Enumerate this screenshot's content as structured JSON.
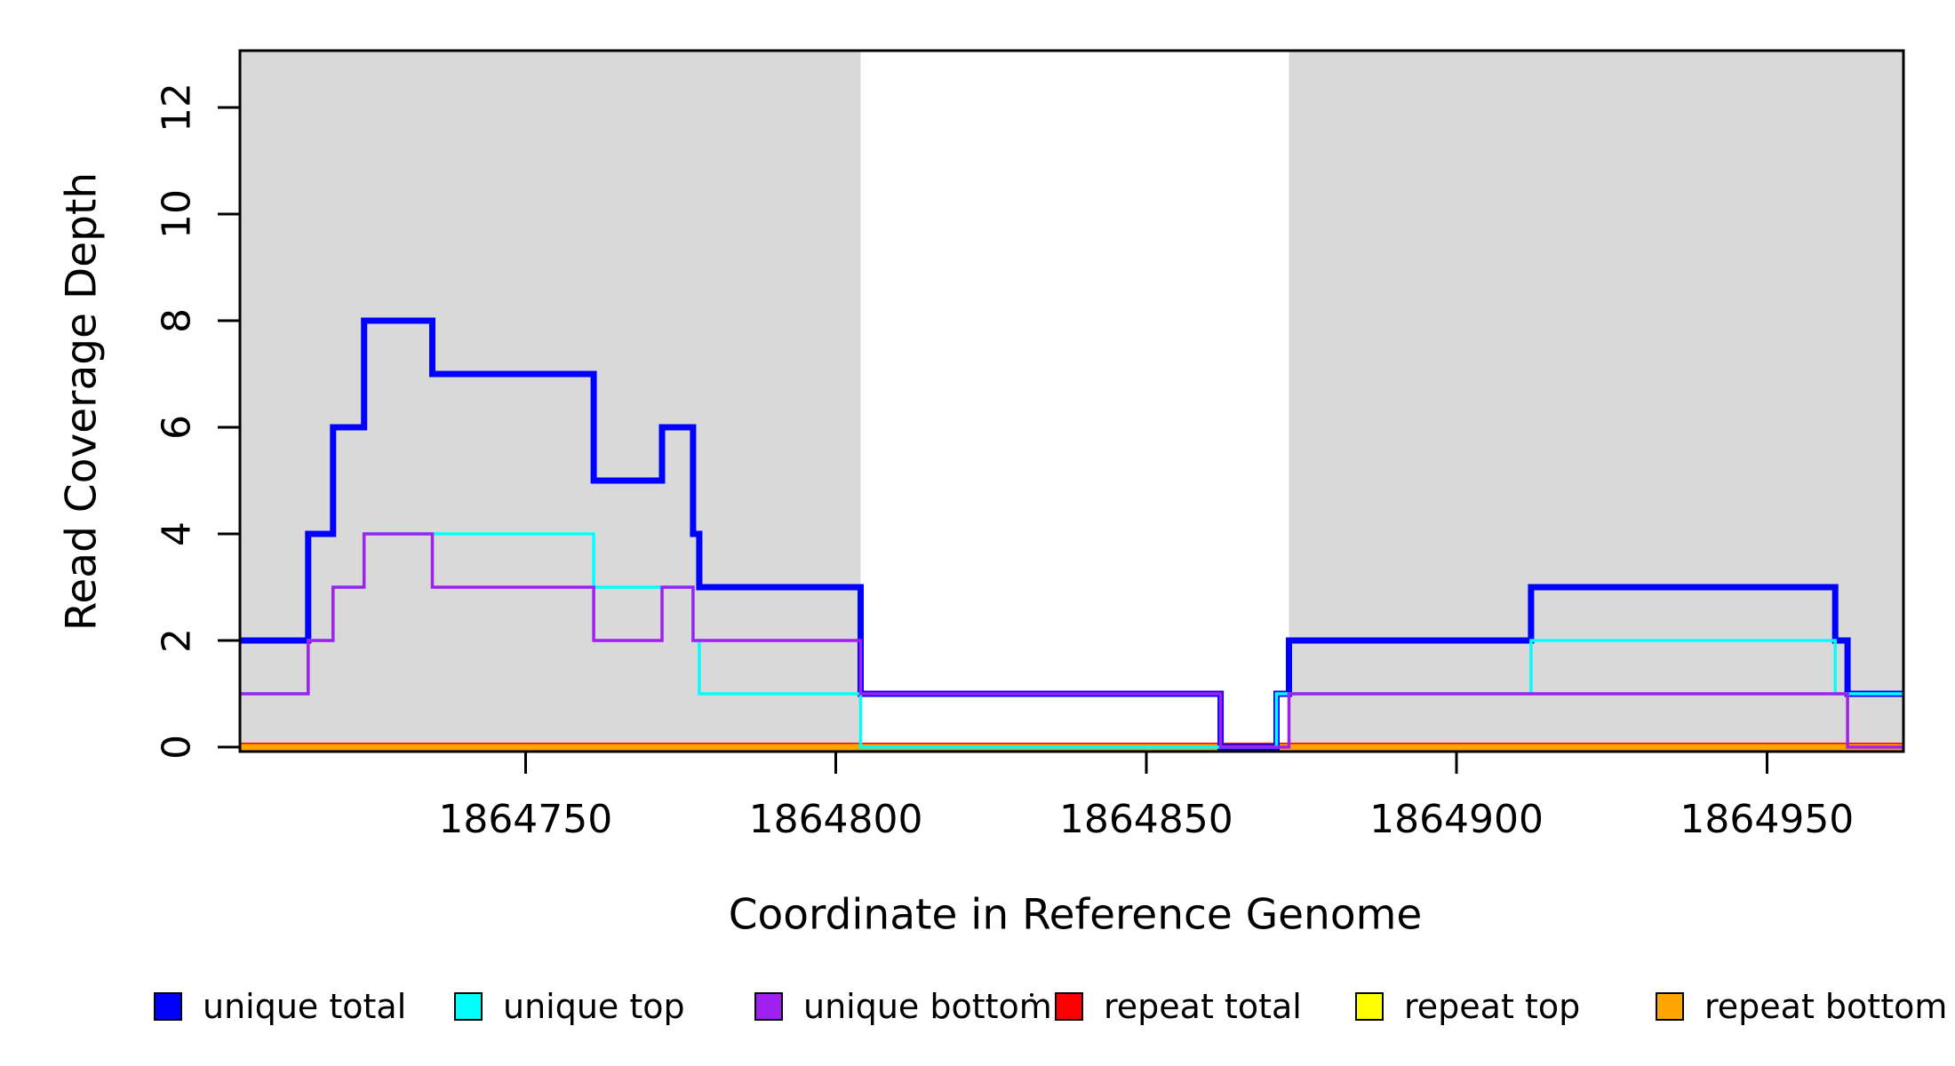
{
  "axes": {
    "x_label": "Coordinate in Reference Genome",
    "y_label": "Read Coverage Depth"
  },
  "legend": {
    "items": [
      {
        "label": "unique total",
        "color": "#0000FF"
      },
      {
        "label": "unique top",
        "color": "#00FFFF"
      },
      {
        "label": "unique bottom",
        "color": "#A020F0"
      },
      {
        "label": "repeat total",
        "color": "#FF0000"
      },
      {
        "label": "repeat top",
        "color": "#FFFF00"
      },
      {
        "label": "repeat bottom",
        "color": "#FFA500"
      }
    ],
    "stray_dot": true
  },
  "chart_data": {
    "type": "line",
    "subtype": "step",
    "title": "",
    "xlabel": "Coordinate in Reference Genome",
    "ylabel": "Read Coverage Depth",
    "x_range": [
      1864704,
      1864972
    ],
    "y_range": [
      0,
      13.1
    ],
    "x_ticks": [
      1864750,
      1864800,
      1864850,
      1864900,
      1864950
    ],
    "y_ticks": [
      0,
      2,
      4,
      6,
      8,
      10,
      12
    ],
    "grid": false,
    "legend_position": "bottom",
    "shade_color": "#D9D9D9",
    "background_shaded_regions": [
      {
        "x_start": 1864704,
        "x_end": 1864804
      },
      {
        "x_start": 1864873,
        "x_end": 1864972
      }
    ],
    "series": [
      {
        "name": "repeat total",
        "color": "#FF0000",
        "line_width": 10,
        "steps": [
          [
            1864704,
            0
          ],
          [
            1864972,
            0
          ]
        ]
      },
      {
        "name": "repeat top",
        "color": "#FFFF00",
        "line_width": 7,
        "steps": [
          [
            1864704,
            0
          ],
          [
            1864972,
            0
          ]
        ]
      },
      {
        "name": "repeat bottom",
        "color": "#FFA500",
        "line_width": 7,
        "steps": [
          [
            1864704,
            0
          ],
          [
            1864972,
            0
          ]
        ]
      },
      {
        "name": "unique total",
        "color": "#0000FF",
        "line_width": 7,
        "steps": [
          [
            1864704,
            2
          ],
          [
            1864715,
            4
          ],
          [
            1864719,
            6
          ],
          [
            1864724,
            8
          ],
          [
            1864735,
            7
          ],
          [
            1864761,
            5
          ],
          [
            1864772,
            6
          ],
          [
            1864777,
            4
          ],
          [
            1864778,
            3
          ],
          [
            1864804,
            1
          ],
          [
            1864862,
            0
          ],
          [
            1864871,
            1
          ],
          [
            1864873,
            2
          ],
          [
            1864912,
            3
          ],
          [
            1864961,
            2
          ],
          [
            1864963,
            1
          ],
          [
            1864972,
            1
          ]
        ]
      },
      {
        "name": "unique top",
        "color": "#00FFFF",
        "line_width": 3.5,
        "steps": [
          [
            1864704,
            1
          ],
          [
            1864715,
            2
          ],
          [
            1864719,
            3
          ],
          [
            1864724,
            4
          ],
          [
            1864761,
            3
          ],
          [
            1864777,
            2
          ],
          [
            1864778,
            1
          ],
          [
            1864804,
            0
          ],
          [
            1864871,
            1
          ],
          [
            1864912,
            2
          ],
          [
            1864961,
            1
          ],
          [
            1864972,
            1
          ]
        ]
      },
      {
        "name": "unique bottom",
        "color": "#A020F0",
        "line_width": 3.5,
        "steps": [
          [
            1864704,
            1
          ],
          [
            1864715,
            2
          ],
          [
            1864719,
            3
          ],
          [
            1864724,
            4
          ],
          [
            1864735,
            3
          ],
          [
            1864761,
            2
          ],
          [
            1864772,
            3
          ],
          [
            1864777,
            2
          ],
          [
            1864804,
            1
          ],
          [
            1864862,
            0
          ],
          [
            1864873,
            1
          ],
          [
            1864963,
            0
          ],
          [
            1864972,
            0
          ]
        ]
      }
    ]
  }
}
